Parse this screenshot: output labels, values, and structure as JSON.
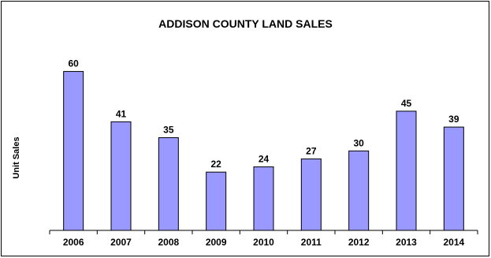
{
  "chart_data": {
    "type": "bar",
    "title": "ADDISON COUNTY LAND SALES",
    "xlabel": "",
    "ylabel": "Unit Sales",
    "categories": [
      "2006",
      "2007",
      "2008",
      "2009",
      "2010",
      "2011",
      "2012",
      "2013",
      "2014"
    ],
    "values": [
      60,
      41,
      35,
      22,
      24,
      27,
      30,
      45,
      39
    ],
    "ylim": [
      0,
      70
    ],
    "grid": false,
    "legend": "none",
    "bar_color": "#9999FF",
    "bar_edge_color": "#000000"
  }
}
